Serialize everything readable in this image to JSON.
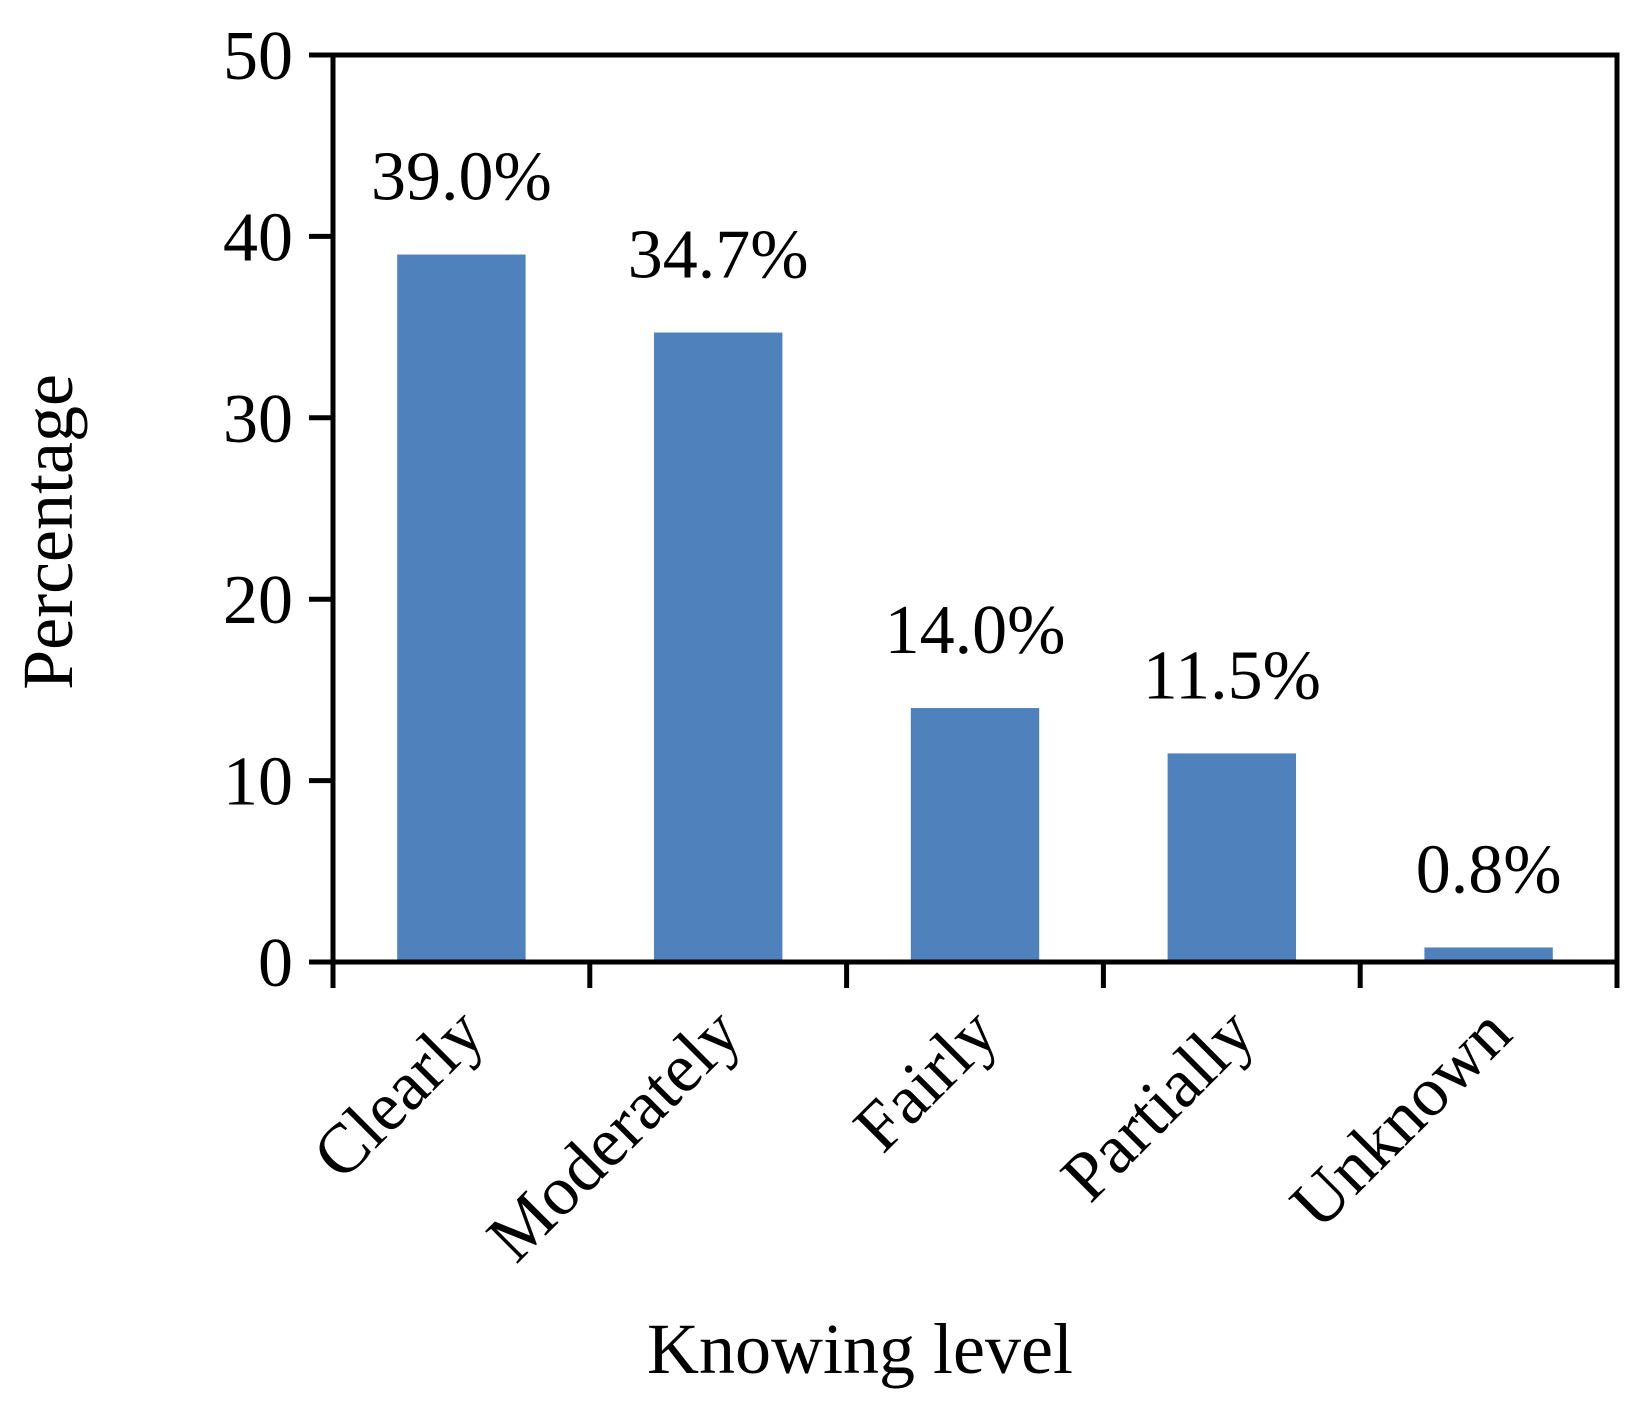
{
  "chart_data": {
    "type": "bar",
    "categories": [
      "Clearly",
      "Moderately",
      "Fairly",
      "Partially",
      "Unknown"
    ],
    "values": [
      39.0,
      34.7,
      14.0,
      11.5,
      0.8
    ],
    "data_labels": [
      "39.0%",
      "34.7%",
      "14.0%",
      "11.5%",
      "0.8%"
    ],
    "xlabel": "Knowing level",
    "ylabel": "Percentage",
    "ylim": [
      0,
      50
    ],
    "yticks": [
      "0",
      "10",
      "20",
      "30",
      "40",
      "50"
    ],
    "grid": false,
    "bar_color": "#4f81bd",
    "axis_color": "#000000"
  }
}
